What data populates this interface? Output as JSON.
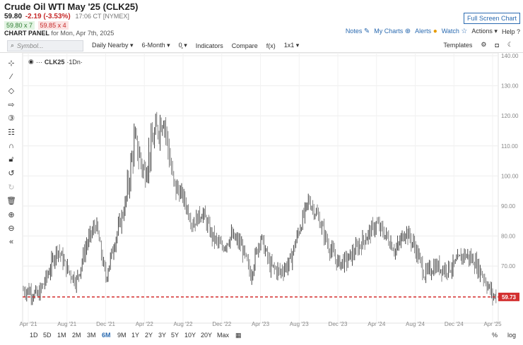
{
  "header": {
    "title": "Crude Oil WTI May '25 (CLK25)",
    "last": "59.80",
    "change": "-2.19 (-3.53%)",
    "time": "17:06 CT [NYMEX]",
    "bid": "59.80 x 7",
    "ask": "59.85 x 4",
    "panel_label": "CHART PANEL",
    "panel_date": "for Mon, Apr 7th, 2025",
    "fullscreen": "Full Screen Chart",
    "links": {
      "notes": "Notes",
      "mycharts": "My Charts",
      "alerts": "Alerts",
      "watch": "Watch",
      "actions": "Actions",
      "help": "Help"
    }
  },
  "toolbar": {
    "symbol_placeholder": "Symbol...",
    "interval": "Daily Nearby",
    "period": "6-Month",
    "bars_icon": "0̥",
    "indicators": "Indicators",
    "compare": "Compare",
    "fx": "f(x)",
    "layout": "1x1",
    "templates": "Templates"
  },
  "legend": {
    "dots": "···",
    "symbol": "CLK25",
    "interval": "·1Dn·"
  },
  "sidebar_tools": [
    "crosshair-icon",
    "trendline-icon",
    "shape-icon",
    "arrow-icon",
    "number-icon",
    "fib-icon",
    "magnet-icon",
    "lock-icon",
    "undo-icon",
    "redo-icon",
    "trash-icon",
    "zoom-in-icon",
    "zoom-out-icon",
    "collapse-icon"
  ],
  "ranges": [
    "1D",
    "5D",
    "1M",
    "2M",
    "3M",
    "6M",
    "9M",
    "1Y",
    "2Y",
    "3Y",
    "5Y",
    "10Y",
    "20Y",
    "Max"
  ],
  "active_range": "6M",
  "bottom_right": {
    "percent": "%",
    "log": "log"
  },
  "chart_data": {
    "type": "line",
    "style": "ohlc-bars",
    "symbol": "CLK25",
    "ylim": [
      55,
      140
    ],
    "yticks": [
      "140.00",
      "130.00",
      "120.00",
      "110.00",
      "100.00",
      "90.00",
      "80.00",
      "70.00"
    ],
    "xticks": [
      "Apr '21",
      "Aug '21",
      "Dec '21",
      "Apr '22",
      "Aug '22",
      "Dec '22",
      "Apr '23",
      "Aug '23",
      "Dec '23",
      "Apr '24",
      "Aug '24",
      "Dec '24",
      "Apr '25"
    ],
    "price_line": {
      "value": 59.73,
      "label": "59.73",
      "color": "#d32f2f"
    },
    "series": [
      {
        "x": [
          "Apr '21",
          "May '21",
          "Jun '21",
          "Jul '21",
          "Aug '21",
          "Sep '21",
          "Oct '21",
          "Nov '21",
          "Dec '21",
          "Jan '22",
          "Feb '22",
          "Mar '22",
          "Apr '22",
          "May '22",
          "Jun '22",
          "Jul '22",
          "Aug '22",
          "Sep '22",
          "Oct '22",
          "Nov '22",
          "Dec '22",
          "Jan '23",
          "Feb '23",
          "Mar '23",
          "Apr '23",
          "May '23",
          "Jun '23",
          "Jul '23",
          "Aug '23",
          "Sep '23",
          "Oct '23",
          "Nov '23",
          "Dec '23",
          "Jan '24",
          "Feb '24",
          "Mar '24",
          "Apr '24",
          "May '24",
          "Jun '24",
          "Jul '24",
          "Aug '24",
          "Sep '24",
          "Oct '24",
          "Nov '24",
          "Dec '24",
          "Jan '25",
          "Feb '25",
          "Mar '25",
          "Apr '25"
        ],
        "values": [
          62,
          60,
          67,
          76,
          69,
          65,
          77,
          84,
          66,
          79,
          90,
          112,
          101,
          113,
          120,
          97,
          93,
          84,
          88,
          80,
          76,
          80,
          77,
          67,
          80,
          70,
          68,
          71,
          82,
          92,
          86,
          77,
          71,
          72,
          76,
          80,
          84,
          80,
          75,
          82,
          76,
          67,
          70,
          69,
          70,
          74,
          72,
          67,
          60
        ]
      }
    ]
  }
}
